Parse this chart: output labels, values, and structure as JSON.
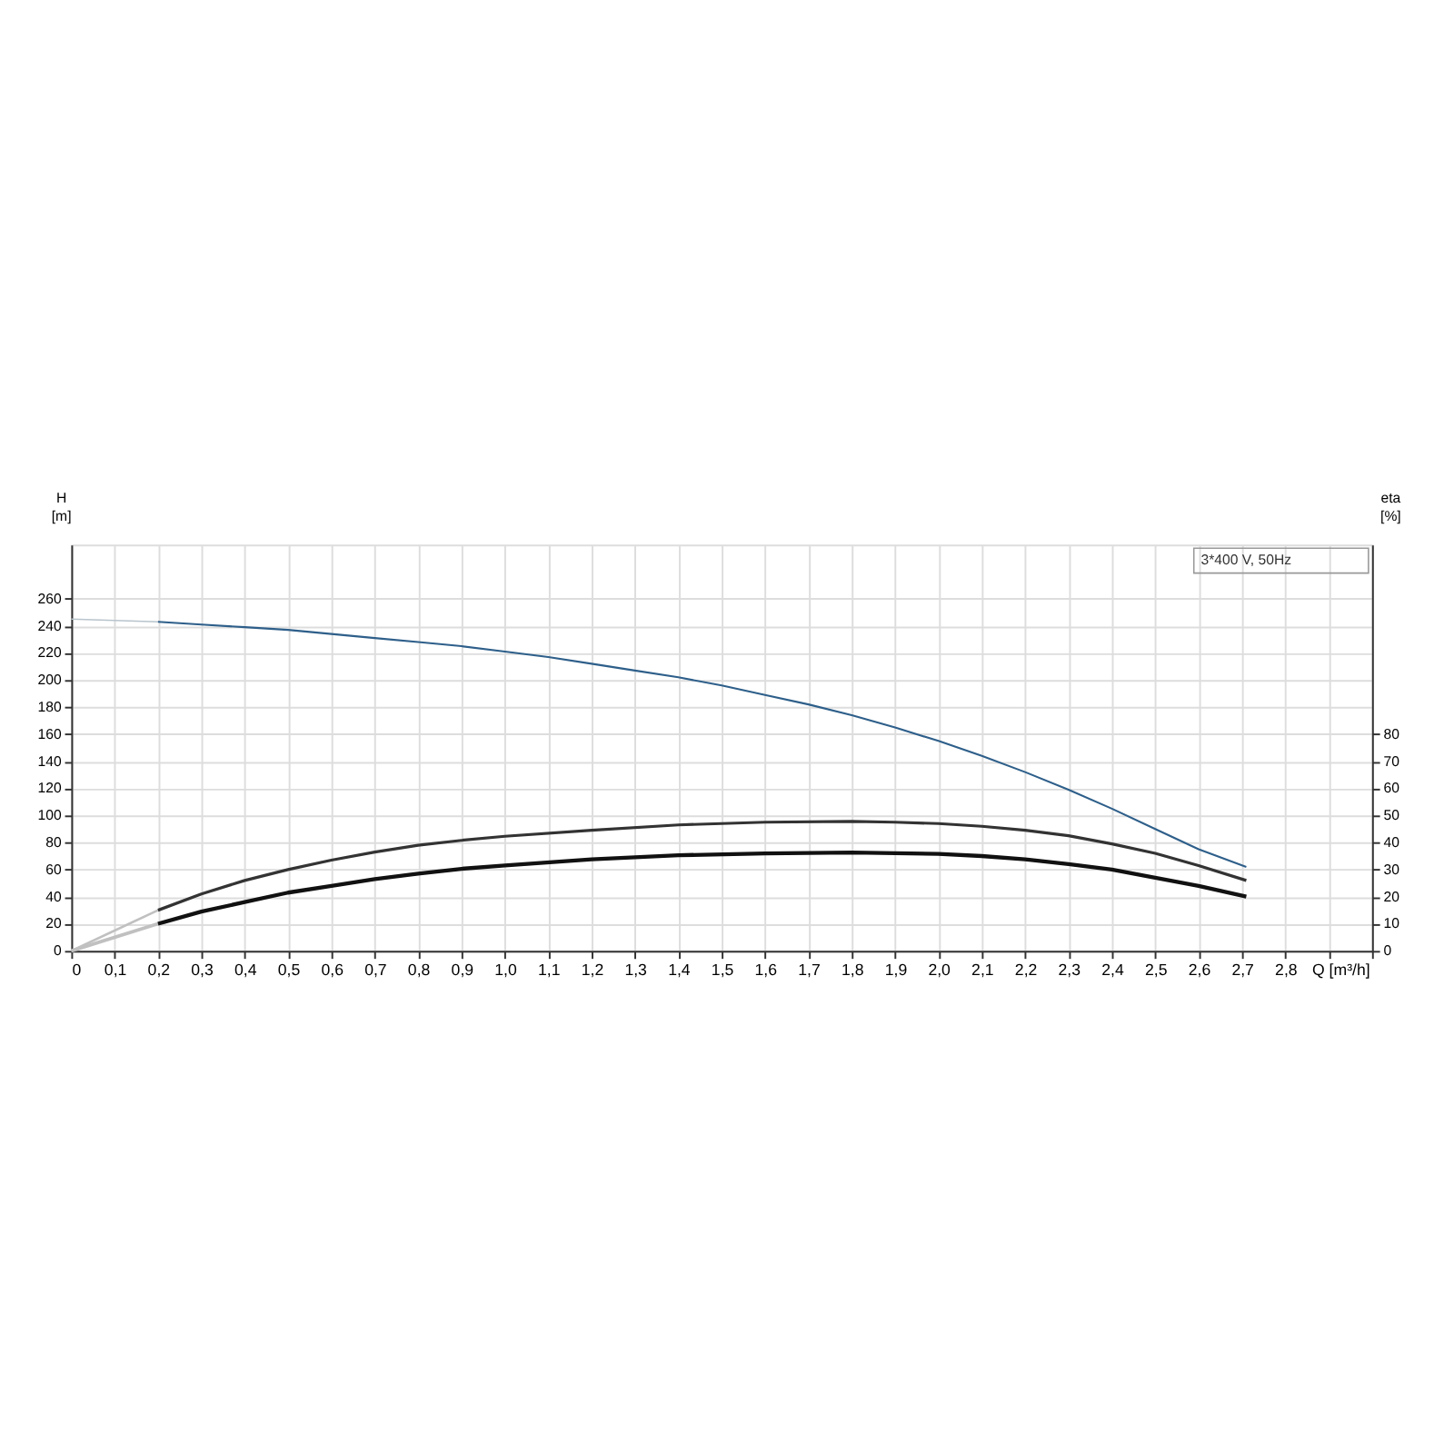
{
  "chart_data": {
    "type": "line",
    "xlabel": "Q [m³/h]",
    "ylabel": "H [m]",
    "y2label": "eta [%]",
    "annotations": [
      "3*400 V, 50Hz"
    ],
    "xlim": [
      0,
      3.0
    ],
    "xticks": [
      0,
      {
        "value": 0.1,
        "label": "0,1"
      },
      {
        "value": 0.2,
        "label": "0,2"
      },
      {
        "value": 0.3,
        "label": "0,3"
      },
      {
        "value": 0.4,
        "label": "0,4"
      },
      {
        "value": 0.5,
        "label": "0,5"
      },
      {
        "value": 0.6,
        "label": "0,6"
      },
      {
        "value": 0.7,
        "label": "0,7"
      },
      {
        "value": 0.8,
        "label": "0,8"
      },
      {
        "value": 0.9,
        "label": "0,9"
      },
      {
        "value": 1.0,
        "label": "1,0"
      },
      {
        "value": 1.1,
        "label": "1,1"
      },
      {
        "value": 1.2,
        "label": "1,2"
      },
      {
        "value": 1.3,
        "label": "1,3"
      },
      {
        "value": 1.4,
        "label": "1,4"
      },
      {
        "value": 1.5,
        "label": "1,5"
      },
      {
        "value": 1.6,
        "label": "1,6"
      },
      {
        "value": 1.7,
        "label": "1,7"
      },
      {
        "value": 1.8,
        "label": "1,8"
      },
      {
        "value": 1.9,
        "label": "1,9"
      },
      {
        "value": 2.0,
        "label": "2,0"
      },
      {
        "value": 2.1,
        "label": "2,1"
      },
      {
        "value": 2.2,
        "label": "2,2"
      },
      {
        "value": 2.3,
        "label": "2,3"
      },
      {
        "value": 2.4,
        "label": "2,4"
      },
      {
        "value": 2.5,
        "label": "2,5"
      },
      {
        "value": 2.6,
        "label": "2,6"
      },
      {
        "value": 2.7,
        "label": "2,7"
      },
      {
        "value": 2.8,
        "label": "2,8"
      },
      {
        "value": 2.9,
        "label": null
      },
      {
        "value": 3.0,
        "label": null
      }
    ],
    "ylim": [
      0,
      300
    ],
    "yticks": [
      0,
      20,
      40,
      60,
      80,
      100,
      120,
      140,
      160,
      180,
      200,
      220,
      240,
      260
    ],
    "y2lim": [
      0,
      150
    ],
    "y2ticks": [
      0,
      10,
      20,
      30,
      40,
      50,
      60,
      70,
      80
    ],
    "grid": true,
    "legend": false,
    "marker": "none",
    "line_style": "solid",
    "series": [
      {
        "color": "#b8c4cc",
        "x": [
          0,
          0.1,
          0.2
        ],
        "values": [
          245,
          244,
          243
        ]
      },
      {
        "color": "#2e5f8a",
        "x": [
          0.2,
          0.3,
          0.4,
          0.5,
          0.6,
          0.7,
          0.8,
          0.9,
          1.0,
          1.1,
          1.2,
          1.3,
          1.4,
          1.5,
          1.6,
          1.7,
          1.8,
          1.9,
          2.0,
          2.1,
          2.2,
          2.3,
          2.4,
          2.5,
          2.6,
          2.71
        ],
        "values": [
          243,
          241,
          239,
          237,
          234,
          231,
          228,
          225,
          221,
          217,
          212,
          207,
          202,
          196,
          189,
          182,
          174,
          165,
          155,
          144,
          132,
          119,
          105,
          90,
          75,
          62
        ]
      },
      {
        "color": "#c0c0c0",
        "axis": "y2",
        "x": [
          0,
          0.2
        ],
        "values": [
          0,
          15
        ]
      },
      {
        "color": "#333333",
        "axis": "y2",
        "x": [
          0.2,
          0.3,
          0.4,
          0.5,
          0.6,
          0.7,
          0.8,
          0.9,
          1.0,
          1.2,
          1.4,
          1.6,
          1.8,
          1.9,
          2.0,
          2.1,
          2.2,
          2.3,
          2.4,
          2.5,
          2.6,
          2.71
        ],
        "values": [
          15,
          21,
          26,
          30,
          33.5,
          36.5,
          39,
          40.8,
          42.3,
          44.5,
          46.5,
          47.5,
          47.8,
          47.5,
          47,
          46,
          44.5,
          42.5,
          39.5,
          36,
          31.5,
          26
        ]
      },
      {
        "color": "#c0c0c0",
        "axis": "y2",
        "x": [
          0,
          0.2
        ],
        "values": [
          0,
          10
        ]
      },
      {
        "color": "#111111",
        "axis": "y2",
        "x": [
          0.2,
          0.3,
          0.4,
          0.5,
          0.6,
          0.7,
          0.8,
          0.9,
          1.0,
          1.2,
          1.4,
          1.6,
          1.8,
          2.0,
          2.1,
          2.2,
          2.3,
          2.4,
          2.5,
          2.6,
          2.71
        ],
        "values": [
          10,
          14.5,
          18,
          21.5,
          24,
          26.5,
          28.5,
          30.3,
          31.5,
          33.8,
          35.3,
          36,
          36.3,
          35.8,
          35,
          33.8,
          32,
          30,
          27,
          24,
          20
        ]
      }
    ]
  }
}
